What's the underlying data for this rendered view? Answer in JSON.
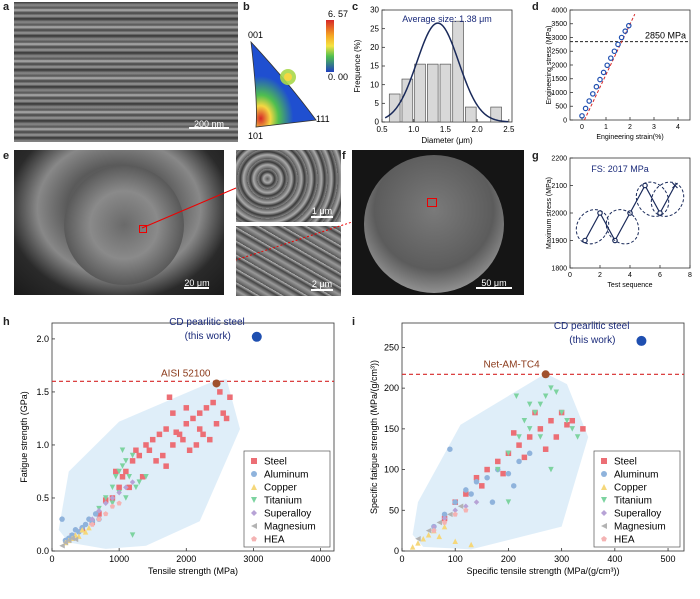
{
  "panels": {
    "a": "a",
    "b": "b",
    "c": "c",
    "d": "d",
    "e": "e",
    "f": "f",
    "g": "g",
    "h": "h",
    "i": "i"
  },
  "scalebars": {
    "a": "200 nm",
    "e": "20 μm",
    "e_top": "1 μm",
    "e_bot": "2 μm",
    "f": "50 μm"
  },
  "ipf": {
    "max": "6. 57",
    "min": "0. 00",
    "v001": "001",
    "v101": "101",
    "v111": "111"
  },
  "colors": {
    "steel": "#ec6e75",
    "aluminum": "#8fb3dc",
    "copper": "#f5d77a",
    "titanium": "#7dd3a0",
    "superalloy": "#b7a3d6",
    "magnesium": "#b3b3b3",
    "hea": "#f4b3b3",
    "hull": "#dcecf8",
    "ref": "#d62728",
    "star": "#1f4fb0",
    "refpt": "#a0522d"
  },
  "chart_data": [
    {
      "id": "c",
      "type": "bar",
      "title": "Average size: 1.38 μm",
      "xlabel": "Diameter (μm)",
      "ylabel": "Frequence (%)",
      "x": [
        0.7,
        0.9,
        1.1,
        1.3,
        1.5,
        1.7,
        1.9,
        2.3
      ],
      "values": [
        7.5,
        11.5,
        15.5,
        15.5,
        15.5,
        27,
        4,
        4
      ],
      "xlim": [
        0.5,
        2.55
      ],
      "ylim": [
        0,
        30
      ],
      "xticks": [
        "0.5",
        "1.0",
        "1.5",
        "2.0",
        "2.5"
      ],
      "yticks": [
        "0",
        "5",
        "10",
        "15",
        "20",
        "25",
        "30"
      ],
      "fit": "gaussian"
    },
    {
      "id": "d",
      "type": "line",
      "xlabel": "Engineering strain(%)",
      "ylabel": "Engineering stress (MPa)",
      "x": [
        0,
        0.15,
        0.3,
        0.45,
        0.6,
        0.75,
        0.9,
        1.05,
        1.2,
        1.35,
        1.5,
        1.65,
        1.8,
        1.95
      ],
      "y": [
        150,
        420,
        690,
        950,
        1210,
        1470,
        1730,
        1990,
        2250,
        2500,
        2750,
        3000,
        3230,
        3430
      ],
      "annotation": "2850 MPa",
      "hline": 2850,
      "xlim": [
        -0.5,
        4.5
      ],
      "ylim": [
        0,
        4000
      ],
      "xticks": [
        "0",
        "1",
        "2",
        "3",
        "4"
      ],
      "yticks": [
        "0",
        "500",
        "1000",
        "1500",
        "2000",
        "2500",
        "3000",
        "3500",
        "4000"
      ]
    },
    {
      "id": "g",
      "type": "line",
      "title": "FS: 2017 MPa",
      "xlabel": "Test sequence",
      "ylabel": "Maximum stress (MPa)",
      "x": [
        1,
        2,
        3,
        4,
        5,
        6,
        7
      ],
      "y": [
        1900,
        2000,
        1900,
        2000,
        2100,
        2000,
        2100
      ],
      "xlim": [
        0,
        8
      ],
      "ylim": [
        1800,
        2200
      ],
      "xticks": [
        "0",
        "2",
        "4",
        "6",
        "8"
      ],
      "yticks": [
        "1800",
        "1900",
        "2000",
        "2100",
        "2200"
      ]
    },
    {
      "id": "h",
      "type": "scatter",
      "xlabel": "Tensile strength (MPa)",
      "ylabel": "Fatigue strength (GPa)",
      "xlim": [
        0,
        4200
      ],
      "ylim": [
        0,
        2.15
      ],
      "xticks": [
        "0",
        "1000",
        "2000",
        "3000",
        "4000"
      ],
      "yticks": [
        "0.0",
        "0.5",
        "1.0",
        "1.5",
        "2.0"
      ],
      "star": {
        "x": 3050,
        "y": 2.02,
        "label": "CD pearlitic steel",
        "sublabel": "(this work)"
      },
      "ref": {
        "x": 2450,
        "y": 1.58,
        "label": "AISI 52100",
        "hline": 1.6
      },
      "hull": [
        [
          100,
          0.2
        ],
        [
          250,
          0.08
        ],
        [
          800,
          0.02
        ],
        [
          1400,
          0.05
        ],
        [
          2200,
          0.28
        ],
        [
          2800,
          1.15
        ],
        [
          2600,
          1.62
        ],
        [
          2400,
          1.6
        ],
        [
          1000,
          1.22
        ],
        [
          250,
          0.75
        ]
      ],
      "series": [
        {
          "name": "Steel",
          "color": "#ec6e75",
          "marker": "square",
          "points": [
            [
              300,
              0.14
            ],
            [
              450,
              0.2
            ],
            [
              600,
              0.27
            ],
            [
              700,
              0.35
            ],
            [
              800,
              0.48
            ],
            [
              900,
              0.5
            ],
            [
              1000,
              0.6
            ],
            [
              1050,
              0.7
            ],
            [
              1100,
              0.75
            ],
            [
              1200,
              0.85
            ],
            [
              1300,
              0.9
            ],
            [
              1400,
              1.0
            ],
            [
              1450,
              0.95
            ],
            [
              1500,
              1.05
            ],
            [
              1600,
              1.1
            ],
            [
              1650,
              0.9
            ],
            [
              1700,
              1.15
            ],
            [
              1750,
              1.45
            ],
            [
              1800,
              1.0
            ],
            [
              1850,
              1.12
            ],
            [
              1900,
              1.1
            ],
            [
              1950,
              1.05
            ],
            [
              2000,
              1.2
            ],
            [
              2050,
              0.95
            ],
            [
              2100,
              1.25
            ],
            [
              2150,
              1.0
            ],
            [
              2200,
              1.3
            ],
            [
              2250,
              1.1
            ],
            [
              2300,
              1.35
            ],
            [
              2350,
              1.05
            ],
            [
              2400,
              1.4
            ],
            [
              2450,
              1.2
            ],
            [
              2500,
              1.5
            ],
            [
              2550,
              1.3
            ],
            [
              2600,
              1.25
            ],
            [
              2650,
              1.45
            ],
            [
              1550,
              0.85
            ],
            [
              1350,
              0.7
            ],
            [
              1250,
              0.95
            ],
            [
              1150,
              0.6
            ],
            [
              950,
              0.75
            ],
            [
              1700,
              0.8
            ],
            [
              2000,
              1.35
            ],
            [
              1800,
              1.3
            ],
            [
              2200,
              1.15
            ]
          ]
        },
        {
          "name": "Aluminum",
          "color": "#8fb3dc",
          "marker": "circle",
          "points": [
            [
              150,
              0.3
            ],
            [
              200,
              0.1
            ],
            [
              250,
              0.12
            ],
            [
              300,
              0.15
            ],
            [
              350,
              0.2
            ],
            [
              400,
              0.18
            ],
            [
              450,
              0.22
            ],
            [
              500,
              0.25
            ],
            [
              550,
              0.3
            ],
            [
              600,
              0.28
            ],
            [
              650,
              0.35
            ],
            [
              700,
              0.3
            ]
          ]
        },
        {
          "name": "Copper",
          "color": "#f5d77a",
          "marker": "triangle-up",
          "points": [
            [
              200,
              0.08
            ],
            [
              250,
              0.1
            ],
            [
              300,
              0.12
            ],
            [
              350,
              0.15
            ],
            [
              400,
              0.14
            ],
            [
              450,
              0.2
            ],
            [
              500,
              0.18
            ],
            [
              550,
              0.22
            ]
          ]
        },
        {
          "name": "Titanium",
          "color": "#7dd3a0",
          "marker": "triangle-down",
          "points": [
            [
              700,
              0.4
            ],
            [
              800,
              0.5
            ],
            [
              900,
              0.6
            ],
            [
              950,
              0.7
            ],
            [
              1000,
              0.75
            ],
            [
              1050,
              0.8
            ],
            [
              1100,
              0.85
            ],
            [
              1150,
              0.7
            ],
            [
              1200,
              0.9
            ],
            [
              1250,
              0.6
            ],
            [
              1300,
              0.65
            ],
            [
              1000,
              0.55
            ],
            [
              900,
              0.45
            ],
            [
              1100,
              0.5
            ],
            [
              1200,
              0.15
            ],
            [
              1400,
              0.7
            ],
            [
              1050,
              0.95
            ]
          ]
        },
        {
          "name": "Superalloy",
          "color": "#b7a3d6",
          "marker": "diamond",
          "points": [
            [
              600,
              0.3
            ],
            [
              700,
              0.38
            ],
            [
              800,
              0.45
            ],
            [
              900,
              0.5
            ],
            [
              1000,
              0.55
            ],
            [
              1100,
              0.6
            ],
            [
              1200,
              0.65
            ]
          ]
        },
        {
          "name": "Magnesium",
          "color": "#b3b3b3",
          "marker": "triangle-left",
          "points": [
            [
              150,
              0.05
            ],
            [
              200,
              0.08
            ],
            [
              250,
              0.1
            ],
            [
              300,
              0.12
            ],
            [
              350,
              0.11
            ]
          ]
        },
        {
          "name": "HEA",
          "color": "#f4b3b3",
          "marker": "pentagon",
          "points": [
            [
              600,
              0.25
            ],
            [
              700,
              0.3
            ],
            [
              800,
              0.35
            ],
            [
              900,
              0.42
            ],
            [
              1000,
              0.45
            ]
          ]
        }
      ]
    },
    {
      "id": "i",
      "type": "scatter",
      "xlabel": "Specific tensile strength (MPa/(g/cm³))",
      "ylabel": "Specific fatigue strength (MPa/(g/cm³))",
      "xlim": [
        0,
        530
      ],
      "ylim": [
        0,
        280
      ],
      "xticks": [
        "0",
        "100",
        "200",
        "300",
        "400",
        "500"
      ],
      "yticks": [
        "0",
        "50",
        "100",
        "150",
        "200",
        "250"
      ],
      "star": {
        "x": 450,
        "y": 258,
        "label": "CD pearlitic steel",
        "sublabel": "(this work)"
      },
      "ref": {
        "x": 270,
        "y": 217,
        "label": "Net-AM-TC4",
        "hline": 217
      },
      "hull": [
        [
          20,
          20
        ],
        [
          40,
          5
        ],
        [
          130,
          2
        ],
        [
          300,
          30
        ],
        [
          350,
          140
        ],
        [
          310,
          205
        ],
        [
          270,
          218
        ],
        [
          110,
          155
        ],
        [
          30,
          60
        ]
      ],
      "series": [
        {
          "name": "Steel",
          "color": "#ec6e75",
          "marker": "square",
          "points": [
            [
              80,
              40
            ],
            [
              100,
              60
            ],
            [
              120,
              70
            ],
            [
              140,
              90
            ],
            [
              160,
              100
            ],
            [
              180,
              110
            ],
            [
              200,
              120
            ],
            [
              220,
              130
            ],
            [
              240,
              140
            ],
            [
              260,
              150
            ],
            [
              280,
              160
            ],
            [
              300,
              170
            ],
            [
              320,
              160
            ],
            [
              340,
              150
            ],
            [
              150,
              80
            ],
            [
              190,
              95
            ],
            [
              230,
              115
            ],
            [
              270,
              125
            ],
            [
              310,
              155
            ],
            [
              250,
              170
            ],
            [
              290,
              140
            ],
            [
              210,
              145
            ]
          ]
        },
        {
          "name": "Aluminum",
          "color": "#8fb3dc",
          "marker": "circle",
          "points": [
            [
              60,
              30
            ],
            [
              80,
              45
            ],
            [
              100,
              60
            ],
            [
              120,
              75
            ],
            [
              140,
              85
            ],
            [
              160,
              90
            ],
            [
              180,
              100
            ],
            [
              200,
              95
            ],
            [
              220,
              110
            ],
            [
              240,
              120
            ],
            [
              90,
              125
            ],
            [
              130,
              70
            ],
            [
              170,
              60
            ],
            [
              210,
              80
            ]
          ]
        },
        {
          "name": "Copper",
          "color": "#f5d77a",
          "marker": "triangle-up",
          "points": [
            [
              20,
              5
            ],
            [
              30,
              10
            ],
            [
              40,
              15
            ],
            [
              50,
              20
            ],
            [
              60,
              25
            ],
            [
              70,
              18
            ],
            [
              80,
              30
            ],
            [
              100,
              12
            ],
            [
              130,
              8
            ]
          ]
        },
        {
          "name": "Titanium",
          "color": "#7dd3a0",
          "marker": "triangle-down",
          "points": [
            [
              180,
              100
            ],
            [
              200,
              120
            ],
            [
              220,
              140
            ],
            [
              240,
              150
            ],
            [
              250,
              170
            ],
            [
              260,
              180
            ],
            [
              270,
              190
            ],
            [
              280,
              200
            ],
            [
              290,
              195
            ],
            [
              300,
              170
            ],
            [
              310,
              160
            ],
            [
              320,
              150
            ],
            [
              330,
              140
            ],
            [
              230,
              160
            ],
            [
              260,
              140
            ],
            [
              240,
              180
            ],
            [
              215,
              190
            ],
            [
              200,
              60
            ],
            [
              280,
              100
            ]
          ]
        },
        {
          "name": "Superalloy",
          "color": "#b7a3d6",
          "marker": "diamond",
          "points": [
            [
              60,
              30
            ],
            [
              80,
              40
            ],
            [
              100,
              50
            ],
            [
              120,
              55
            ],
            [
              140,
              60
            ]
          ]
        },
        {
          "name": "Magnesium",
          "color": "#b3b3b3",
          "marker": "triangle-left",
          "points": [
            [
              30,
              15
            ],
            [
              50,
              25
            ],
            [
              70,
              35
            ],
            [
              90,
              45
            ],
            [
              110,
              55
            ]
          ]
        },
        {
          "name": "HEA",
          "color": "#f4b3b3",
          "marker": "pentagon",
          "points": [
            [
              60,
              25
            ],
            [
              80,
              35
            ],
            [
              100,
              45
            ],
            [
              120,
              50
            ]
          ]
        }
      ]
    }
  ]
}
